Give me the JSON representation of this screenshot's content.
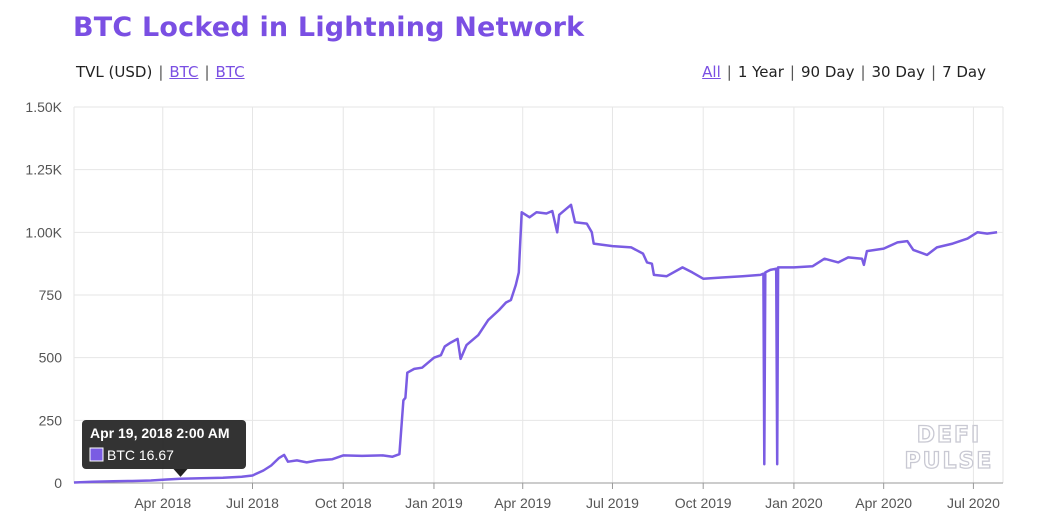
{
  "header": {
    "title": "BTC Locked in Lightning Network",
    "metric_tabs": [
      {
        "label": "TVL (USD)",
        "active": false
      },
      {
        "label": "BTC",
        "active": false
      },
      {
        "label": "BTC",
        "active": false
      }
    ],
    "range_tabs": [
      {
        "label": "All",
        "active": true
      },
      {
        "label": "1 Year",
        "active": false
      },
      {
        "label": "90 Day",
        "active": false
      },
      {
        "label": "30 Day",
        "active": false
      },
      {
        "label": "7 Day",
        "active": false
      }
    ],
    "separator": "|"
  },
  "tooltip": {
    "date": "Apr 19, 2018 2:00 AM",
    "series_label": "BTC 16.67"
  },
  "watermark": {
    "line1": "DEFI",
    "line2": "PULSE"
  },
  "colors": {
    "accent": "#7a4fe3",
    "line": "#7a5ce3",
    "tooltip_bg": "#222222",
    "grid": "#e6e6e6"
  },
  "chart_data": {
    "type": "line",
    "title": "BTC Locked in Lightning Network",
    "ylim": [
      0,
      1500
    ],
    "y_ticks": [
      0,
      250,
      500,
      750,
      1000,
      1250,
      1500
    ],
    "y_tick_labels": [
      "0",
      "250",
      "500",
      "750",
      "1.00K",
      "1.25K",
      "1.50K"
    ],
    "x_range": [
      "2018-01-01",
      "2020-07-31"
    ],
    "x_ticks": [
      {
        "date": "2018-04-01",
        "label": "Apr 2018"
      },
      {
        "date": "2018-07-01",
        "label": "Jul 2018"
      },
      {
        "date": "2018-10-01",
        "label": "Oct 2018"
      },
      {
        "date": "2019-01-01",
        "label": "Jan 2019"
      },
      {
        "date": "2019-04-01",
        "label": "Apr 2019"
      },
      {
        "date": "2019-07-01",
        "label": "Jul 2019"
      },
      {
        "date": "2019-10-01",
        "label": "Oct 2019"
      },
      {
        "date": "2020-01-01",
        "label": "Jan 2020"
      },
      {
        "date": "2020-04-01",
        "label": "Apr 2020"
      },
      {
        "date": "2020-07-01",
        "label": "Jul 2020"
      }
    ],
    "grid": true,
    "highlight": {
      "date": "2018-04-19",
      "value": 16.67
    },
    "series": [
      {
        "name": "BTC",
        "points": [
          [
            "2018-01-01",
            2
          ],
          [
            "2018-01-20",
            5
          ],
          [
            "2018-02-10",
            7
          ],
          [
            "2018-03-01",
            8
          ],
          [
            "2018-03-20",
            10
          ],
          [
            "2018-04-05",
            14
          ],
          [
            "2018-04-19",
            16.67
          ],
          [
            "2018-05-10",
            19
          ],
          [
            "2018-06-01",
            21
          ],
          [
            "2018-06-20",
            25
          ],
          [
            "2018-07-01",
            30
          ],
          [
            "2018-07-12",
            50
          ],
          [
            "2018-07-20",
            70
          ],
          [
            "2018-07-28",
            100
          ],
          [
            "2018-08-02",
            112
          ],
          [
            "2018-08-06",
            85
          ],
          [
            "2018-08-15",
            90
          ],
          [
            "2018-08-25",
            82
          ],
          [
            "2018-09-05",
            90
          ],
          [
            "2018-09-20",
            95
          ],
          [
            "2018-10-01",
            110
          ],
          [
            "2018-10-20",
            108
          ],
          [
            "2018-11-10",
            110
          ],
          [
            "2018-11-20",
            105
          ],
          [
            "2018-11-27",
            115
          ],
          [
            "2018-12-01",
            330
          ],
          [
            "2018-12-03",
            340
          ],
          [
            "2018-12-05",
            440
          ],
          [
            "2018-12-12",
            455
          ],
          [
            "2018-12-20",
            460
          ],
          [
            "2019-01-01",
            500
          ],
          [
            "2019-01-08",
            510
          ],
          [
            "2019-01-12",
            545
          ],
          [
            "2019-01-18",
            560
          ],
          [
            "2019-01-25",
            575
          ],
          [
            "2019-01-28",
            495
          ],
          [
            "2019-02-03",
            550
          ],
          [
            "2019-02-15",
            590
          ],
          [
            "2019-02-25",
            650
          ],
          [
            "2019-03-08",
            690
          ],
          [
            "2019-03-15",
            720
          ],
          [
            "2019-03-20",
            730
          ],
          [
            "2019-03-25",
            790
          ],
          [
            "2019-03-28",
            840
          ],
          [
            "2019-03-31",
            1080
          ],
          [
            "2019-04-08",
            1060
          ],
          [
            "2019-04-15",
            1080
          ],
          [
            "2019-04-25",
            1075
          ],
          [
            "2019-05-01",
            1085
          ],
          [
            "2019-05-06",
            1000
          ],
          [
            "2019-05-08",
            1070
          ],
          [
            "2019-05-20",
            1110
          ],
          [
            "2019-05-24",
            1040
          ],
          [
            "2019-06-05",
            1035
          ],
          [
            "2019-06-10",
            1000
          ],
          [
            "2019-06-12",
            955
          ],
          [
            "2019-07-01",
            945
          ],
          [
            "2019-07-20",
            940
          ],
          [
            "2019-08-01",
            915
          ],
          [
            "2019-08-05",
            880
          ],
          [
            "2019-08-10",
            875
          ],
          [
            "2019-08-12",
            830
          ],
          [
            "2019-08-25",
            825
          ],
          [
            "2019-09-10",
            860
          ],
          [
            "2019-09-20",
            840
          ],
          [
            "2019-10-01",
            815
          ],
          [
            "2019-10-20",
            820
          ],
          [
            "2019-11-10",
            825
          ],
          [
            "2019-11-28",
            830
          ],
          [
            "2019-12-01",
            835
          ],
          [
            "2019-12-02",
            75
          ],
          [
            "2019-12-03",
            840
          ],
          [
            "2019-12-08",
            850
          ],
          [
            "2019-12-14",
            855
          ],
          [
            "2019-12-15",
            75
          ],
          [
            "2019-12-16",
            860
          ],
          [
            "2020-01-01",
            860
          ],
          [
            "2020-01-20",
            865
          ],
          [
            "2020-02-01",
            895
          ],
          [
            "2020-02-15",
            880
          ],
          [
            "2020-02-25",
            900
          ],
          [
            "2020-03-10",
            895
          ],
          [
            "2020-03-12",
            870
          ],
          [
            "2020-03-15",
            925
          ],
          [
            "2020-04-01",
            935
          ],
          [
            "2020-04-15",
            960
          ],
          [
            "2020-04-25",
            965
          ],
          [
            "2020-05-01",
            930
          ],
          [
            "2020-05-15",
            910
          ],
          [
            "2020-05-25",
            940
          ],
          [
            "2020-06-10",
            955
          ],
          [
            "2020-06-25",
            975
          ],
          [
            "2020-07-05",
            1000
          ],
          [
            "2020-07-15",
            995
          ],
          [
            "2020-07-25",
            1000
          ]
        ]
      }
    ]
  }
}
